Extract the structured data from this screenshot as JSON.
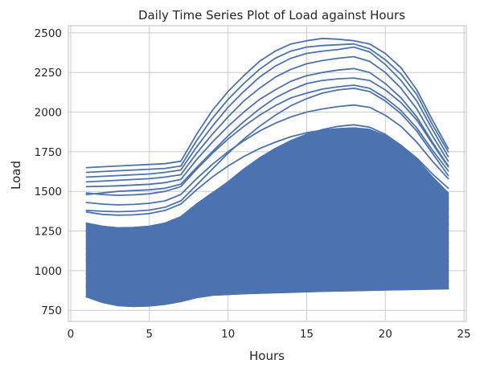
{
  "chart_data": {
    "type": "line",
    "title": "Daily Time Series Plot of Load against Hours",
    "xlabel": "Hours",
    "ylabel": "Load",
    "xlim": [
      -0.15,
      25.15
    ],
    "ylim": [
      680,
      2545
    ],
    "xticks": [
      0,
      5,
      10,
      15,
      20,
      25
    ],
    "yticks": [
      750,
      1000,
      1250,
      1500,
      1750,
      2000,
      2250,
      2500
    ],
    "grid": true,
    "line_color": "#4c72b0",
    "x": [
      1,
      2,
      3,
      4,
      5,
      6,
      7,
      8,
      9,
      10,
      11,
      12,
      13,
      14,
      15,
      16,
      17,
      18,
      19,
      20,
      21,
      22,
      23,
      24
    ],
    "series": [
      {
        "values": [
          1650,
          1655,
          1660,
          1665,
          1670,
          1675,
          1690,
          1860,
          2010,
          2130,
          2230,
          2320,
          2385,
          2430,
          2450,
          2465,
          2460,
          2450,
          2430,
          2370,
          2280,
          2140,
          1950,
          1770
        ]
      },
      {
        "values": [
          1620,
          1625,
          1630,
          1635,
          1640,
          1645,
          1660,
          1820,
          1960,
          2080,
          2180,
          2270,
          2340,
          2385,
          2410,
          2420,
          2425,
          2430,
          2400,
          2330,
          2240,
          2110,
          1920,
          1750
        ]
      },
      {
        "values": [
          1590,
          1595,
          1600,
          1605,
          1610,
          1620,
          1635,
          1780,
          1910,
          2030,
          2130,
          2220,
          2290,
          2340,
          2370,
          2385,
          2395,
          2410,
          2380,
          2300,
          2200,
          2070,
          1890,
          1720
        ]
      },
      {
        "values": [
          1560,
          1565,
          1570,
          1575,
          1580,
          1590,
          1605,
          1740,
          1860,
          1970,
          2070,
          2150,
          2220,
          2270,
          2305,
          2325,
          2340,
          2350,
          2320,
          2250,
          2150,
          2020,
          1850,
          1690
        ]
      },
      {
        "values": [
          1530,
          1532,
          1535,
          1540,
          1545,
          1555,
          1575,
          1700,
          1810,
          1910,
          2000,
          2080,
          2140,
          2195,
          2230,
          2250,
          2265,
          2275,
          2250,
          2180,
          2090,
          1970,
          1810,
          1660
        ]
      },
      {
        "values": [
          1490,
          1480,
          1475,
          1478,
          1485,
          1500,
          1530,
          1640,
          1740,
          1830,
          1910,
          1980,
          2040,
          2090,
          2120,
          2145,
          2160,
          2170,
          2150,
          2090,
          2010,
          1900,
          1760,
          1630
        ]
      },
      {
        "values": [
          1430,
          1420,
          1415,
          1418,
          1425,
          1440,
          1480,
          1580,
          1670,
          1750,
          1820,
          1880,
          1930,
          1970,
          2000,
          2020,
          2035,
          2045,
          2030,
          1980,
          1910,
          1810,
          1690,
          1580
        ]
      },
      {
        "values": [
          1370,
          1355,
          1350,
          1352,
          1360,
          1380,
          1420,
          1510,
          1590,
          1660,
          1720,
          1770,
          1810,
          1845,
          1870,
          1885,
          1895,
          1900,
          1890,
          1850,
          1790,
          1710,
          1610,
          1520
        ]
      },
      {
        "values": [
          1300,
          1280,
          1270,
          1272,
          1280,
          1300,
          1340,
          1420,
          1490,
          1550,
          1600,
          1640,
          1675,
          1700,
          1720,
          1735,
          1740,
          1745,
          1735,
          1705,
          1660,
          1600,
          1530,
          1460
        ]
      },
      {
        "values": [
          1220,
          1200,
          1190,
          1190,
          1198,
          1215,
          1250,
          1320,
          1380,
          1430,
          1470,
          1500,
          1525,
          1545,
          1560,
          1570,
          1575,
          1578,
          1570,
          1548,
          1515,
          1475,
          1430,
          1390
        ]
      },
      {
        "values": [
          1140,
          1115,
          1100,
          1100,
          1105,
          1120,
          1150,
          1210,
          1260,
          1300,
          1330,
          1355,
          1375,
          1390,
          1400,
          1408,
          1412,
          1415,
          1410,
          1398,
          1375,
          1350,
          1320,
          1290
        ]
      },
      {
        "values": [
          1060,
          1030,
          1010,
          1005,
          1010,
          1025,
          1050,
          1100,
          1140,
          1170,
          1195,
          1215,
          1230,
          1240,
          1248,
          1254,
          1258,
          1260,
          1256,
          1248,
          1232,
          1215,
          1195,
          1175
        ]
      },
      {
        "values": [
          980,
          945,
          920,
          915,
          918,
          930,
          955,
          995,
          1025,
          1050,
          1070,
          1085,
          1095,
          1102,
          1108,
          1112,
          1115,
          1117,
          1115,
          1110,
          1100,
          1090,
          1075,
          1060
        ]
      },
      {
        "values": [
          900,
          860,
          835,
          828,
          830,
          840,
          860,
          890,
          910,
          925,
          935,
          943,
          950,
          955,
          958,
          960,
          962,
          963,
          962,
          960,
          955,
          950,
          942,
          935
        ]
      },
      {
        "values": [
          835,
          800,
          780,
          775,
          778,
          788,
          805,
          830,
          845,
          850,
          855,
          858,
          861,
          864,
          867,
          870,
          872,
          874,
          876,
          878,
          880,
          882,
          884,
          886
        ]
      },
      {
        "values": [
          1480,
          1490,
          1500,
          1505,
          1510,
          1520,
          1545,
          1650,
          1750,
          1850,
          1940,
          2020,
          2090,
          2140,
          2180,
          2200,
          2210,
          2215,
          2200,
          2140,
          2060,
          1950,
          1800,
          1655
        ]
      },
      {
        "values": [
          1250,
          1240,
          1235,
          1238,
          1245,
          1265,
          1300,
          1390,
          1480,
          1560,
          1640,
          1710,
          1770,
          1820,
          1860,
          1890,
          1910,
          1920,
          1905,
          1860,
          1790,
          1700,
          1590,
          1490
        ]
      },
      {
        "values": [
          1100,
          1080,
          1070,
          1072,
          1080,
          1100,
          1140,
          1210,
          1290,
          1360,
          1420,
          1480,
          1530,
          1575,
          1610,
          1635,
          1650,
          1660,
          1650,
          1615,
          1560,
          1490,
          1410,
          1340
        ]
      },
      {
        "values": [
          950,
          925,
          910,
          908,
          912,
          925,
          955,
          1010,
          1060,
          1110,
          1155,
          1195,
          1230,
          1260,
          1285,
          1300,
          1310,
          1315,
          1310,
          1290,
          1255,
          1210,
          1160,
          1110
        ]
      },
      {
        "values": [
          1380,
          1375,
          1372,
          1375,
          1382,
          1400,
          1440,
          1540,
          1640,
          1740,
          1830,
          1910,
          1980,
          2040,
          2085,
          2120,
          2140,
          2150,
          2130,
          2070,
          1990,
          1880,
          1740,
          1600
        ]
      }
    ]
  }
}
